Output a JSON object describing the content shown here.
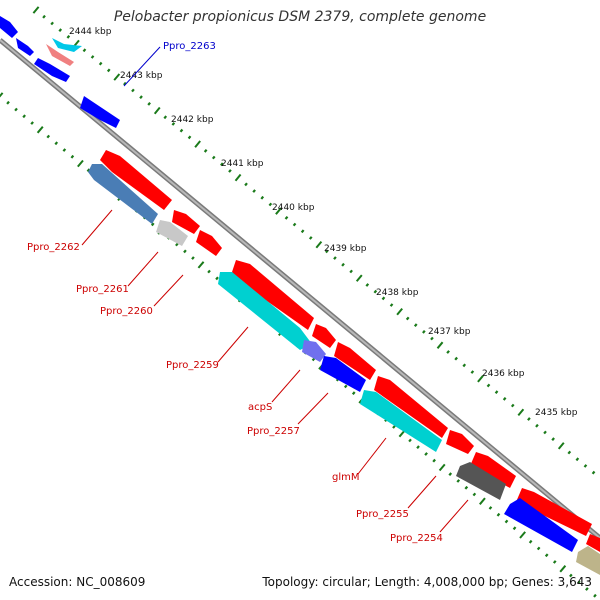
{
  "title": "Pelobacter propionicus DSM 2379, complete genome",
  "footer": {
    "accession": "Accession: NC_008609",
    "topology": "Topology: circular; Length: 4,008,000 bp; Genes: 3,643"
  },
  "kbp_ticks": [
    "2444 kbp",
    "2443 kbp",
    "2442 kbp",
    "2441 kbp",
    "2440 kbp",
    "2439 kbp",
    "2438 kbp",
    "2437 kbp",
    "2436 kbp",
    "2435 kbp"
  ],
  "gene_labels": [
    "Ppro_2263",
    "Ppro_2262",
    "Ppro_2261",
    "Ppro_2260",
    "Ppro_2259",
    "acpS",
    "Ppro_2257",
    "glmM",
    "Ppro_2255",
    "Ppro_2254"
  ],
  "colors": {
    "forward_strand": "#ff0000",
    "reverse_strand": "#0000ff",
    "backbone": "#888888",
    "tick_marks": "#1a7a1a",
    "label_red": "#cc0000",
    "label_blue": "#0000cc"
  }
}
